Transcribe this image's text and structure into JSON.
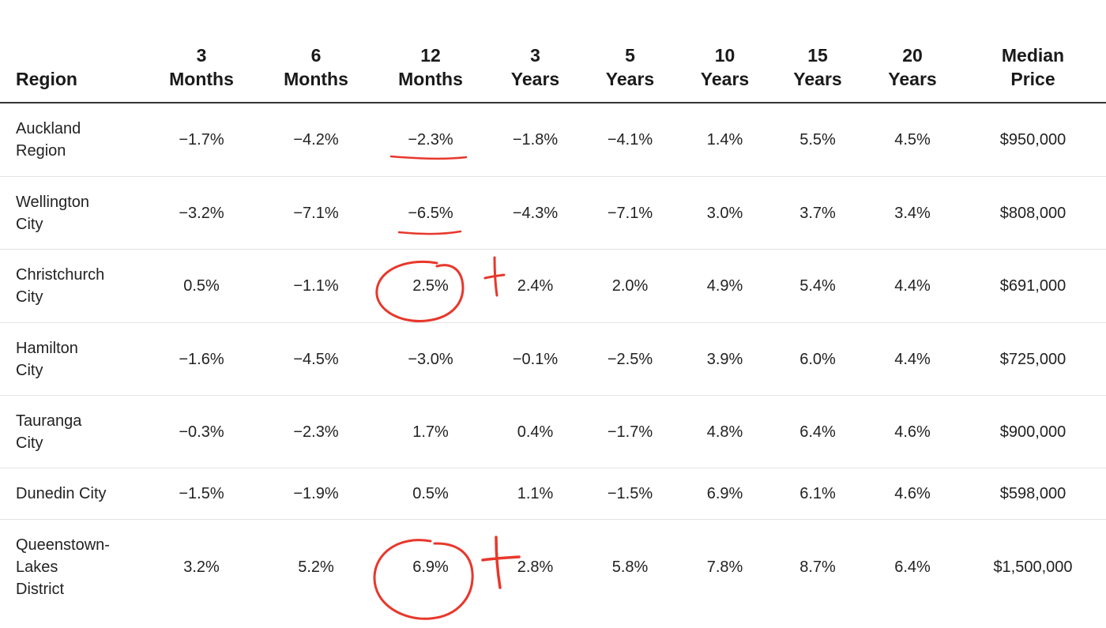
{
  "table": {
    "headers": [
      {
        "lines": [
          "Region"
        ]
      },
      {
        "lines": [
          "3",
          "Months"
        ]
      },
      {
        "lines": [
          "6",
          "Months"
        ]
      },
      {
        "lines": [
          "12",
          "Months"
        ]
      },
      {
        "lines": [
          "3",
          "Years"
        ]
      },
      {
        "lines": [
          "5",
          "Years"
        ]
      },
      {
        "lines": [
          "10",
          "Years"
        ]
      },
      {
        "lines": [
          "15",
          "Years"
        ]
      },
      {
        "lines": [
          "20",
          "Years"
        ]
      },
      {
        "lines": [
          "Median",
          "Price"
        ]
      }
    ],
    "rows": [
      {
        "region": [
          "Auckland",
          "Region"
        ],
        "values": [
          "−1.7%",
          "−4.2%",
          "−2.3%",
          "−1.8%",
          "−4.1%",
          "1.4%",
          "5.5%",
          "4.5%",
          "$950,000"
        ]
      },
      {
        "region": [
          "Wellington",
          "City"
        ],
        "values": [
          "−3.2%",
          "−7.1%",
          "−6.5%",
          "−4.3%",
          "−7.1%",
          "3.0%",
          "3.7%",
          "3.4%",
          "$808,000"
        ]
      },
      {
        "region": [
          "Christchurch",
          "City"
        ],
        "values": [
          "0.5%",
          "−1.1%",
          "2.5%",
          "2.4%",
          "2.0%",
          "4.9%",
          "5.4%",
          "4.4%",
          "$691,000"
        ]
      },
      {
        "region": [
          "Hamilton",
          "City"
        ],
        "values": [
          "−1.6%",
          "−4.5%",
          "−3.0%",
          "−0.1%",
          "−2.5%",
          "3.9%",
          "6.0%",
          "4.4%",
          "$725,000"
        ]
      },
      {
        "region": [
          "Tauranga",
          "City"
        ],
        "values": [
          "−0.3%",
          "−2.3%",
          "1.7%",
          "0.4%",
          "−1.7%",
          "4.8%",
          "6.4%",
          "4.6%",
          "$900,000"
        ]
      },
      {
        "region": [
          "Dunedin City"
        ],
        "values": [
          "−1.5%",
          "−1.9%",
          "0.5%",
          "1.1%",
          "−1.5%",
          "6.9%",
          "6.1%",
          "4.6%",
          "$598,000"
        ]
      },
      {
        "region": [
          "Queenstown-",
          "Lakes",
          "District"
        ],
        "values": [
          "3.2%",
          "5.2%",
          "6.9%",
          "2.8%",
          "5.8%",
          "7.8%",
          "8.7%",
          "6.4%",
          "$1,500,000"
        ]
      }
    ]
  },
  "annotations": {
    "color": "#e8372b",
    "marks": [
      {
        "type": "underline",
        "target": "Auckland Region — 12 Months"
      },
      {
        "type": "underline",
        "target": "Wellington City — 12 Months"
      },
      {
        "type": "circle",
        "target": "Christchurch City — 12 Months"
      },
      {
        "type": "plus",
        "target": "Christchurch City — 3 Years"
      },
      {
        "type": "circle",
        "target": "Queenstown-Lakes District — 12 Months"
      },
      {
        "type": "plus",
        "target": "Queenstown-Lakes District — 3 Years"
      }
    ]
  }
}
